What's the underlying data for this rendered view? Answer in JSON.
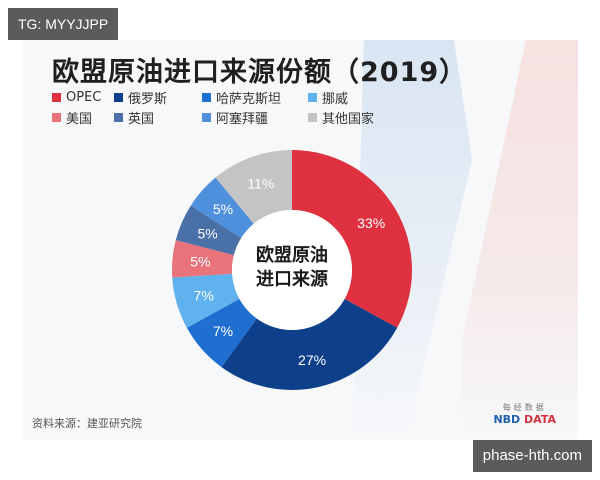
{
  "watermark_top": "TG: MYYJJPP",
  "watermark_bottom": "phase-hth.com",
  "title": "欧盟原油进口来源份额（2019）",
  "center_label": [
    "欧盟原油",
    "进口来源"
  ],
  "source": "资料来源：建亚研究院",
  "logo": {
    "cn": "每经数据",
    "nbd": "NBD",
    "data": "DATA"
  },
  "legend": [
    {
      "label": "OPEC",
      "color": "#e03140"
    },
    {
      "label": "俄罗斯",
      "color": "#0d3f8a"
    },
    {
      "label": "哈萨克斯坦",
      "color": "#1f6fd0"
    },
    {
      "label": "挪威",
      "color": "#5fb2ee"
    },
    {
      "label": "美国",
      "color": "#e8737b"
    },
    {
      "label": "英国",
      "color": "#4a70a8"
    },
    {
      "label": "阿塞拜疆",
      "color": "#4f90dc"
    },
    {
      "label": "其他国家",
      "color": "#c4c4c4"
    }
  ],
  "chart_data": {
    "type": "pie",
    "subtype": "donut",
    "title": "欧盟原油进口来源份额（2019）",
    "center_text": "欧盟原油进口来源",
    "categories": [
      "OPEC",
      "俄罗斯",
      "哈萨克斯坦",
      "挪威",
      "美国",
      "英国",
      "阿塞拜疆",
      "其他国家"
    ],
    "values": [
      33,
      27,
      7,
      7,
      5,
      5,
      5,
      11
    ],
    "unit": "%",
    "colors": [
      "#e03140",
      "#0d3f8a",
      "#1f6fd0",
      "#5fb2ee",
      "#e8737b",
      "#4a70a8",
      "#4f90dc",
      "#c4c4c4"
    ],
    "direction": "clockwise from 12 o'clock",
    "legend_position": "top-left"
  }
}
